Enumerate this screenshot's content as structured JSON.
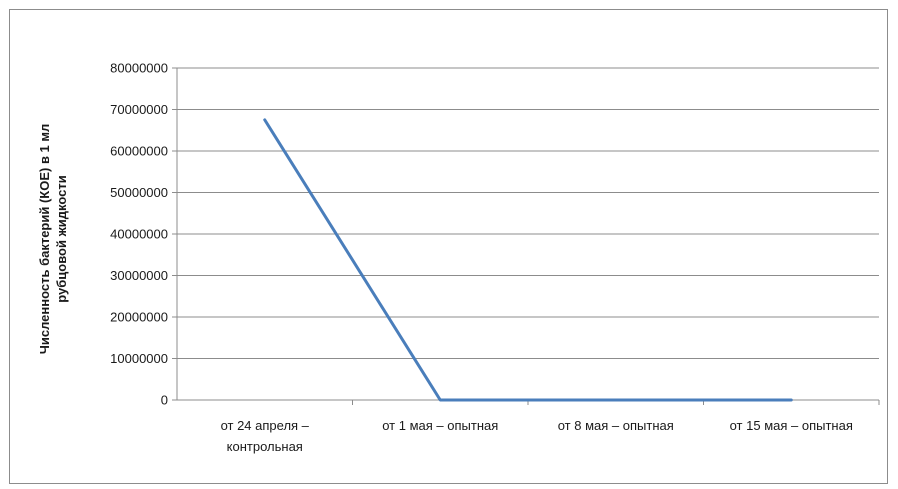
{
  "chart_data": {
    "type": "line",
    "title": "",
    "xlabel": "",
    "ylabel": "Численность бактерий (КОЕ) в 1 мл рубцовой жидкости",
    "ylabel_lines": [
      "Численность бактерий (КОЕ) в 1 мл",
      "рубцовой жидкости"
    ],
    "categories": [
      "от 24 апреля – контрольная",
      "от 1 мая – опытная",
      "от 8 мая – опытная",
      "от 15 мая – опытная"
    ],
    "category_lines": [
      [
        "от 24 апреля –",
        "контрольная"
      ],
      [
        "от 1 мая – опытная"
      ],
      [
        "от 8 мая – опытная"
      ],
      [
        "от 15 мая – опытная"
      ]
    ],
    "series": [
      {
        "values": [
          67500000,
          0,
          0,
          0
        ],
        "color": "#4a7ebb"
      }
    ],
    "ylim": [
      0,
      80000000
    ],
    "yticks": [
      0,
      10000000,
      20000000,
      30000000,
      40000000,
      50000000,
      60000000,
      70000000,
      80000000
    ],
    "grid": true,
    "legend": "none",
    "gridline_color": "#8c8c8c",
    "axis_color": "#8c8c8c"
  }
}
